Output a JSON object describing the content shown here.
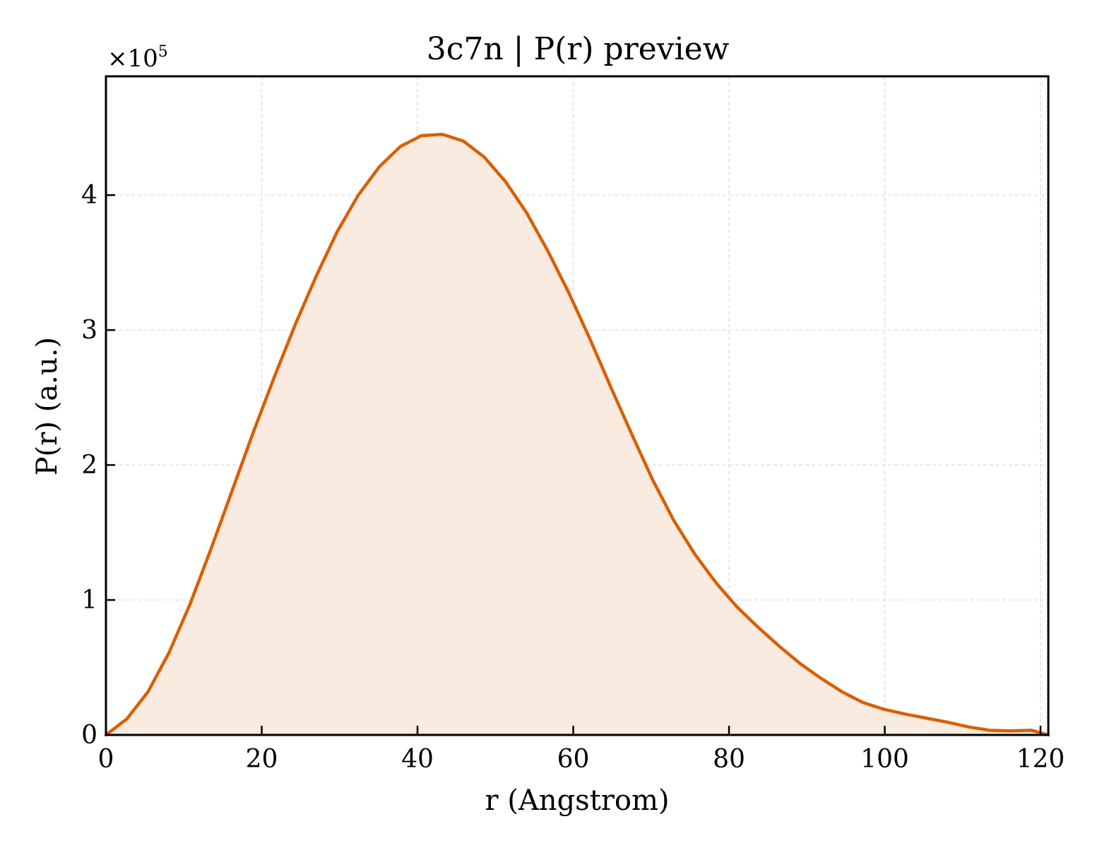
{
  "chart_data": {
    "type": "area",
    "title": "3c7n | P(r) preview",
    "xlabel": "r (Angstrom)",
    "ylabel": "P(r) (a.u.)",
    "y_offset_label": {
      "base": "×10",
      "exponent": "5"
    },
    "y_multiplier": 100000,
    "xlim": [
      0,
      121
    ],
    "ylim": [
      0,
      4.88
    ],
    "x_ticks": [
      0,
      20,
      40,
      60,
      80,
      100,
      120
    ],
    "x_tick_labels": [
      "0",
      "20",
      "40",
      "60",
      "80",
      "100",
      "120"
    ],
    "y_ticks": [
      0,
      1,
      2,
      3,
      4
    ],
    "y_tick_labels": [
      "0",
      "1",
      "2",
      "3",
      "4"
    ],
    "grid": true,
    "legend": false,
    "colors": {
      "line": "#d95f02",
      "fill": "#f9ebe0",
      "grid": "#d9d9d9",
      "axes": "#000000"
    },
    "series": [
      {
        "x": [
          0,
          2.7,
          5.4,
          8.1,
          10.8,
          13.5,
          16.2,
          18.9,
          21.6,
          24.3,
          27.0,
          29.7,
          32.4,
          35.1,
          37.8,
          40.5,
          43.2,
          45.9,
          48.6,
          51.3,
          54.0,
          56.7,
          59.4,
          62.1,
          64.8,
          67.5,
          70.2,
          72.9,
          75.6,
          78.3,
          81.0,
          83.7,
          86.4,
          89.1,
          91.8,
          94.5,
          97.2,
          99.9,
          102.6,
          105.3,
          108.0,
          110.7,
          113.4,
          116.1,
          118.8,
          121.0
        ],
        "y": [
          0.0,
          0.12,
          0.32,
          0.61,
          0.97,
          1.38,
          1.81,
          2.24,
          2.65,
          3.04,
          3.4,
          3.73,
          4.0,
          4.21,
          4.36,
          4.44,
          4.45,
          4.4,
          4.28,
          4.1,
          3.87,
          3.59,
          3.28,
          2.94,
          2.58,
          2.23,
          1.89,
          1.59,
          1.34,
          1.13,
          0.95,
          0.8,
          0.66,
          0.53,
          0.42,
          0.32,
          0.24,
          0.19,
          0.155,
          0.125,
          0.095,
          0.06,
          0.035,
          0.03,
          0.035,
          0.0
        ]
      }
    ]
  }
}
